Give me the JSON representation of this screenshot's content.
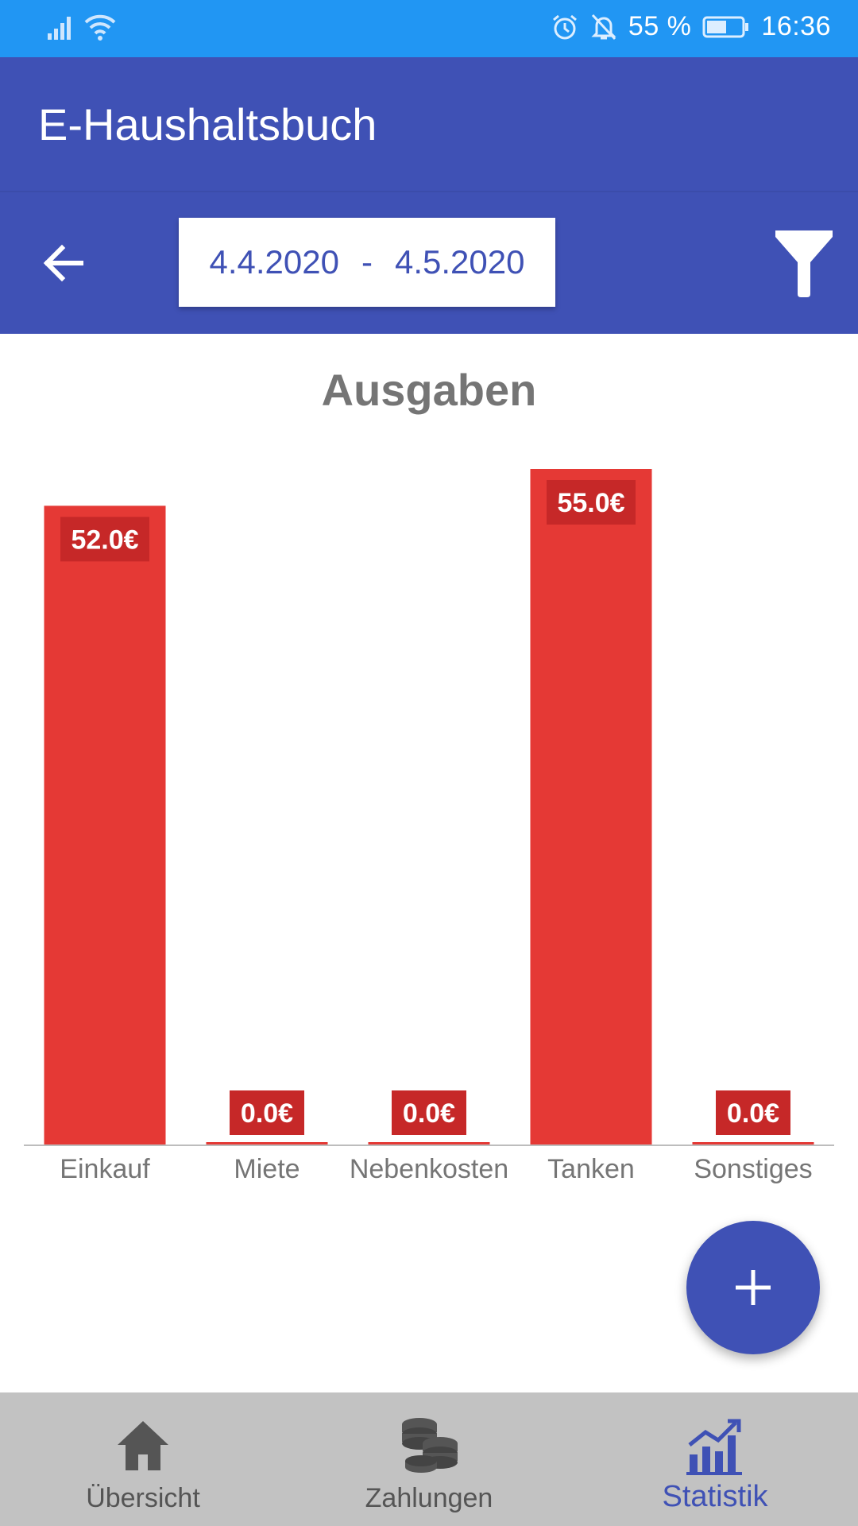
{
  "status_bar": {
    "battery": "55 %",
    "time": "16:36",
    "icons": [
      "signal-icon",
      "wifi-icon",
      "alarm-icon",
      "bell-off-icon",
      "battery-icon"
    ]
  },
  "app_bar": {
    "title": "E-Haushaltsbuch"
  },
  "date_range": {
    "start": "4.4.2020",
    "separator": "-",
    "end": "4.5.2020"
  },
  "chart_data": {
    "type": "bar",
    "title": "Ausgaben",
    "categories": [
      "Einkauf",
      "Miete",
      "Nebenkosten",
      "Tanken",
      "Sonstiges"
    ],
    "values": [
      52.0,
      0.0,
      0.0,
      55.0,
      0.0
    ],
    "value_labels": [
      "52.0€",
      "0.0€",
      "0.0€",
      "55.0€",
      "0.0€"
    ],
    "ylim": [
      0,
      55.0
    ],
    "bar_color": "#e53935",
    "label_bg_color": "#c62828",
    "grid": false,
    "legend": "none"
  },
  "fab": {
    "label": "+"
  },
  "bottom_nav": {
    "items": [
      {
        "label": "Übersicht",
        "icon": "home-icon",
        "active": false
      },
      {
        "label": "Zahlungen",
        "icon": "coins-icon",
        "active": false
      },
      {
        "label": "Statistik",
        "icon": "chart-icon",
        "active": true
      }
    ]
  },
  "colors": {
    "primary": "#3f51b5",
    "status_bar": "#2196f3",
    "bar": "#e53935",
    "nav_bg": "#c2c2c2"
  }
}
